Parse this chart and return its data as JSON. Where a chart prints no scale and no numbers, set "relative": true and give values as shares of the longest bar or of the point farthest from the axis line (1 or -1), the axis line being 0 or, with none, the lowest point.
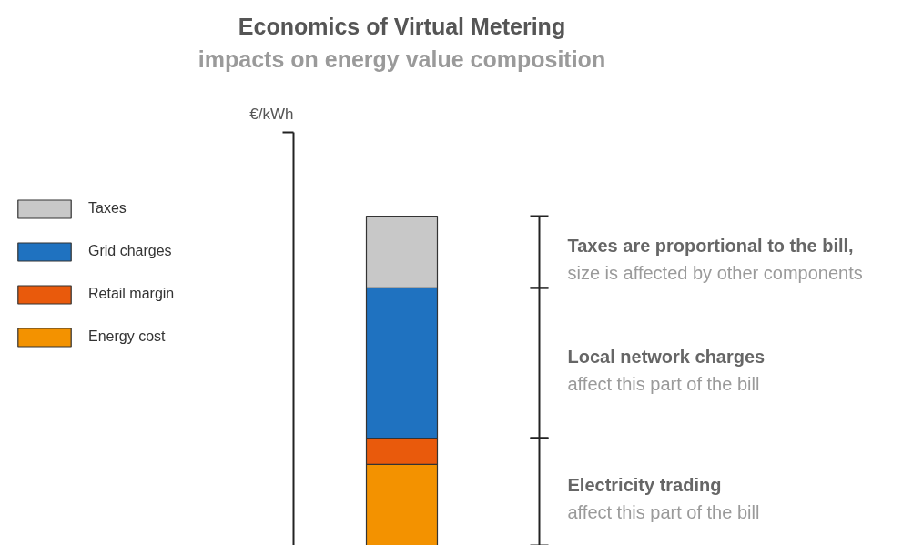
{
  "chart_data": {
    "type": "bar",
    "title": "Economics of Virtual Metering",
    "subtitle": "impacts on energy value composition",
    "relative": true,
    "stacked": true,
    "legend": "left",
    "categories": [
      null
    ],
    "series": [
      {
        "name": "Energy cost",
        "color": "#f39200",
        "values": [
          0.246
        ]
      },
      {
        "name": "Retail margin",
        "color": "#e95a0c",
        "values": [
          0.08
        ]
      },
      {
        "name": "Grid charges",
        "color": "#1f72c0",
        "values": [
          0.456
        ]
      },
      {
        "name": "Taxes",
        "color": "#c8c8c8",
        "values": [
          0.218
        ]
      }
    ],
    "annotations": [
      "€/kWh",
      "Taxes are proportional to the bill,\nsize is affected by other components",
      "Local network charges\naffect this part of the bill",
      "Electricity trading\naffect this part of the bill"
    ]
  }
}
